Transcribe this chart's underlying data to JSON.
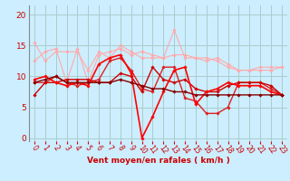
{
  "background_color": "#cceeff",
  "grid_color": "#aacccc",
  "xlabel": "Vent moyen/en rafales ( km/h )",
  "xlabel_color": "#cc0000",
  "xlabel_fontsize": 6.5,
  "tick_color": "#cc0000",
  "tick_fontsize": 5.5,
  "ytick_fontsize": 6.5,
  "yticks": [
    0,
    5,
    10,
    15,
    20
  ],
  "xticks": [
    0,
    1,
    2,
    3,
    4,
    5,
    6,
    7,
    8,
    9,
    10,
    11,
    12,
    13,
    14,
    15,
    16,
    17,
    18,
    19,
    20,
    21,
    22,
    23
  ],
  "ylim": [
    -0.5,
    21.5
  ],
  "xlim": [
    -0.5,
    23.5
  ],
  "lines": [
    {
      "x": [
        0,
        1,
        2,
        3,
        4,
        5,
        6,
        7,
        8,
        9,
        10,
        11,
        12,
        13,
        14,
        15,
        16,
        17,
        18,
        19,
        20,
        21,
        22,
        23
      ],
      "y": [
        15.5,
        12.5,
        14.0,
        14.0,
        14.0,
        11.0,
        14.0,
        13.0,
        15.0,
        14.0,
        13.0,
        13.0,
        13.0,
        17.5,
        13.0,
        13.0,
        12.5,
        13.0,
        12.0,
        11.0,
        11.0,
        11.5,
        11.5,
        11.5
      ],
      "color": "#ffaaaa",
      "lw": 0.8,
      "marker": "D",
      "ms": 1.8
    },
    {
      "x": [
        0,
        1,
        2,
        3,
        4,
        5,
        6,
        7,
        8,
        9,
        10,
        11,
        12,
        13,
        14,
        15,
        16,
        17,
        18,
        19,
        20,
        21,
        22,
        23
      ],
      "y": [
        12.5,
        14.0,
        14.5,
        9.0,
        14.5,
        9.0,
        13.5,
        14.0,
        14.5,
        13.5,
        14.0,
        13.5,
        13.0,
        13.5,
        13.5,
        13.0,
        13.0,
        12.5,
        11.5,
        11.0,
        11.0,
        11.0,
        11.0,
        11.5
      ],
      "color": "#ffaaaa",
      "lw": 0.8,
      "marker": "D",
      "ms": 1.8
    },
    {
      "x": [
        0,
        1,
        2,
        3,
        4,
        5,
        6,
        7,
        8,
        9,
        10,
        11,
        12,
        13,
        14,
        15,
        16,
        17,
        18,
        19,
        20,
        21,
        22,
        23
      ],
      "y": [
        9.0,
        9.0,
        10.0,
        9.0,
        8.5,
        9.0,
        9.5,
        12.5,
        13.0,
        11.0,
        8.0,
        7.5,
        11.5,
        11.5,
        6.5,
        6.0,
        4.0,
        4.0,
        5.0,
        9.0,
        9.0,
        9.0,
        8.0,
        7.0
      ],
      "color": "#dd2222",
      "lw": 1.0,
      "marker": "D",
      "ms": 1.8
    },
    {
      "x": [
        0,
        1,
        2,
        3,
        4,
        5,
        6,
        7,
        8,
        9,
        10,
        11,
        12,
        13,
        14,
        15,
        16,
        17,
        18,
        19,
        20,
        21,
        22,
        23
      ],
      "y": [
        7.0,
        9.0,
        9.0,
        9.5,
        9.5,
        9.5,
        9.0,
        9.0,
        10.5,
        10.0,
        7.5,
        11.5,
        9.5,
        9.0,
        9.5,
        8.0,
        7.5,
        7.5,
        8.5,
        9.0,
        9.0,
        9.0,
        8.5,
        7.0
      ],
      "color": "#cc0000",
      "lw": 1.0,
      "marker": "D",
      "ms": 1.8
    },
    {
      "x": [
        0,
        1,
        2,
        3,
        4,
        5,
        6,
        7,
        8,
        9,
        10,
        11,
        12,
        13,
        14,
        15,
        16,
        17,
        18,
        19,
        20,
        21,
        22,
        23
      ],
      "y": [
        9.5,
        10.0,
        9.0,
        8.5,
        9.0,
        8.5,
        12.0,
        13.0,
        13.5,
        10.5,
        0.0,
        3.5,
        7.5,
        11.0,
        11.5,
        5.5,
        7.5,
        8.0,
        9.0,
        8.5,
        8.5,
        8.5,
        7.5,
        7.0
      ],
      "color": "#ff0000",
      "lw": 1.2,
      "marker": "D",
      "ms": 1.8
    },
    {
      "x": [
        0,
        1,
        2,
        3,
        4,
        5,
        6,
        7,
        8,
        9,
        10,
        11,
        12,
        13,
        14,
        15,
        16,
        17,
        18,
        19,
        20,
        21,
        22,
        23
      ],
      "y": [
        9.0,
        9.5,
        10.0,
        9.0,
        9.0,
        9.0,
        9.0,
        9.0,
        9.5,
        9.0,
        8.5,
        8.0,
        8.0,
        7.5,
        7.5,
        7.0,
        7.0,
        7.0,
        7.0,
        7.0,
        7.0,
        7.0,
        7.0,
        7.0
      ],
      "color": "#880000",
      "lw": 1.0,
      "marker": "D",
      "ms": 1.8
    }
  ]
}
